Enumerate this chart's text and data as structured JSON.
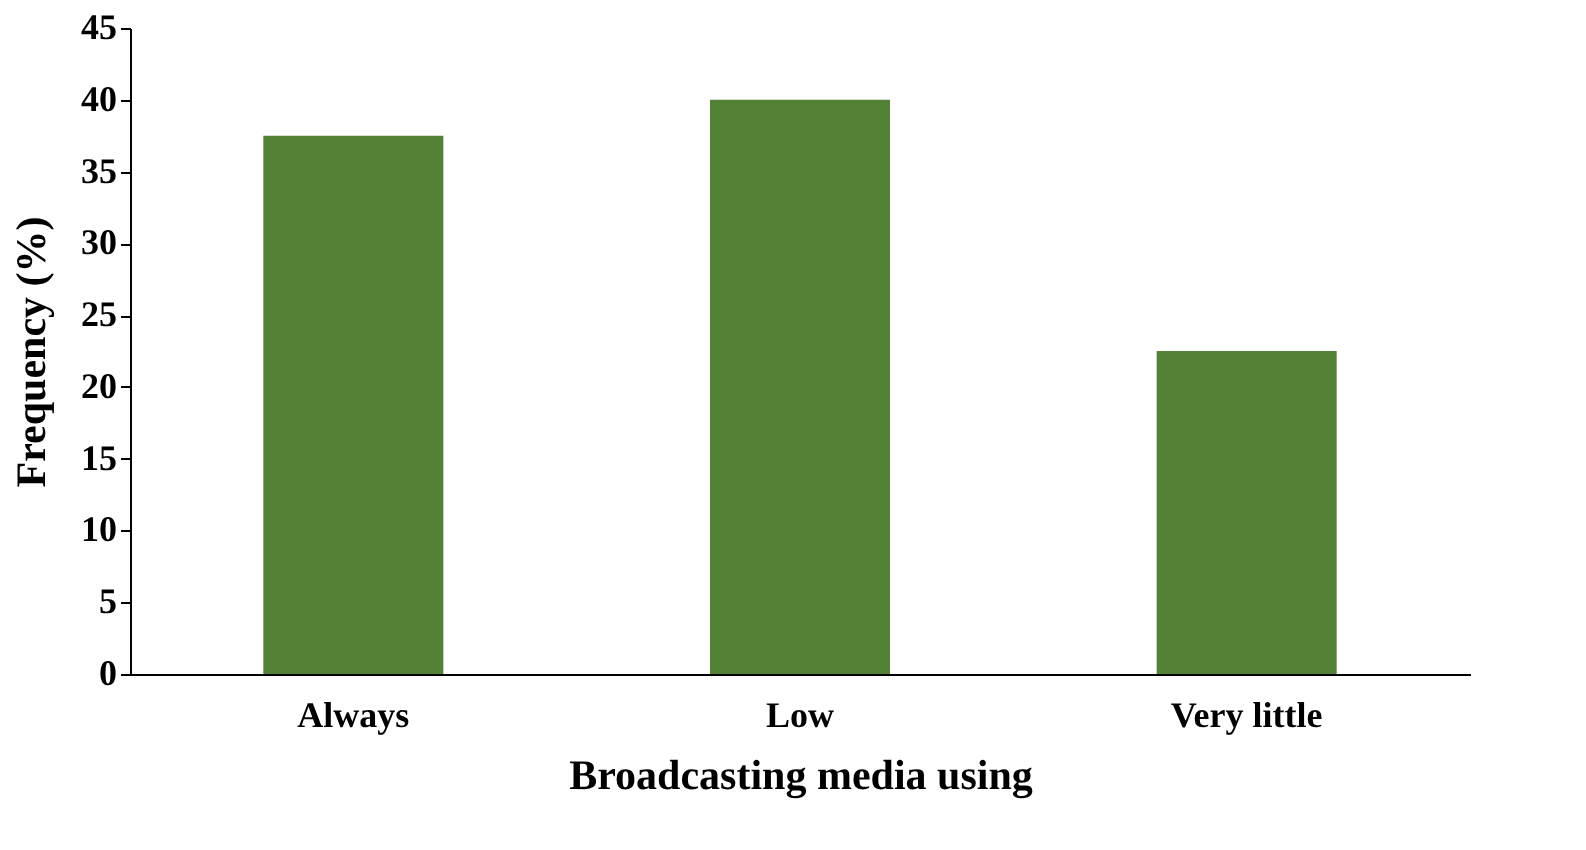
{
  "chart_data": {
    "type": "bar",
    "xlabel": "Broadcasting media using",
    "ylabel": "Frequency (%)",
    "categories": [
      "Always",
      "Low",
      "Very little"
    ],
    "values": [
      37.5,
      40,
      22.5
    ],
    "color": "#538135",
    "ylim": [
      0,
      45
    ],
    "yticks": [
      0,
      5,
      10,
      15,
      20,
      25,
      30,
      35,
      40,
      45
    ],
    "grid": false
  }
}
